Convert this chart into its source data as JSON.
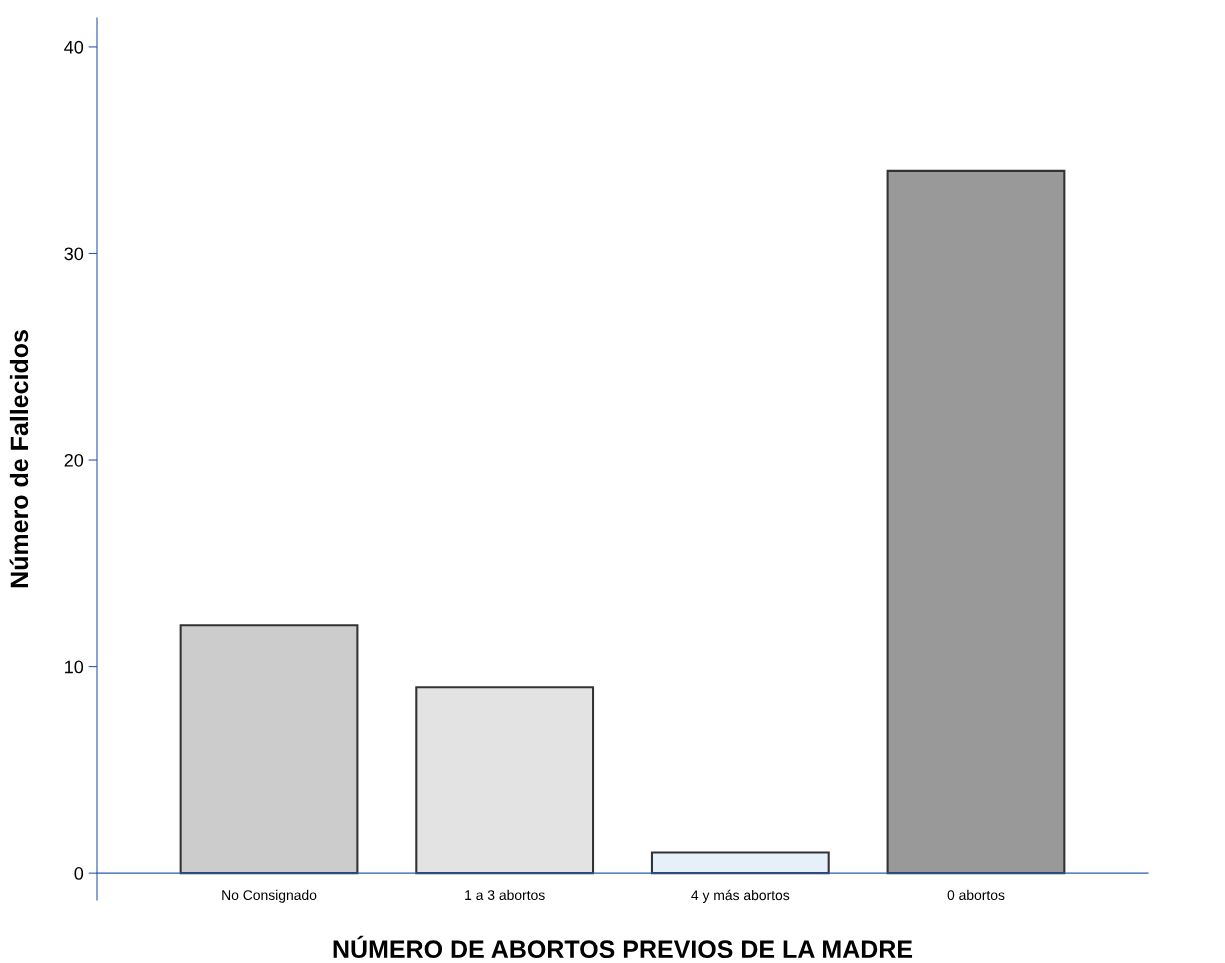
{
  "chart_data": {
    "type": "bar",
    "xlabel": "NÚMERO DE ABORTOS PREVIOS DE LA MADRE",
    "ylabel": "Número de Fallecidos",
    "categories": [
      "No Consignado",
      "1 a 3 abortos",
      "4 y más abortos",
      "0 abortos"
    ],
    "values": [
      12,
      9,
      1,
      34
    ],
    "colors": [
      "#cccccc",
      "#e3e3e3",
      "#e6f0fb",
      "#999999"
    ],
    "ylim": [
      -1.3,
      41.4
    ],
    "yticks": [
      0,
      10,
      20,
      30,
      40
    ],
    "grid": false,
    "legend": false
  }
}
